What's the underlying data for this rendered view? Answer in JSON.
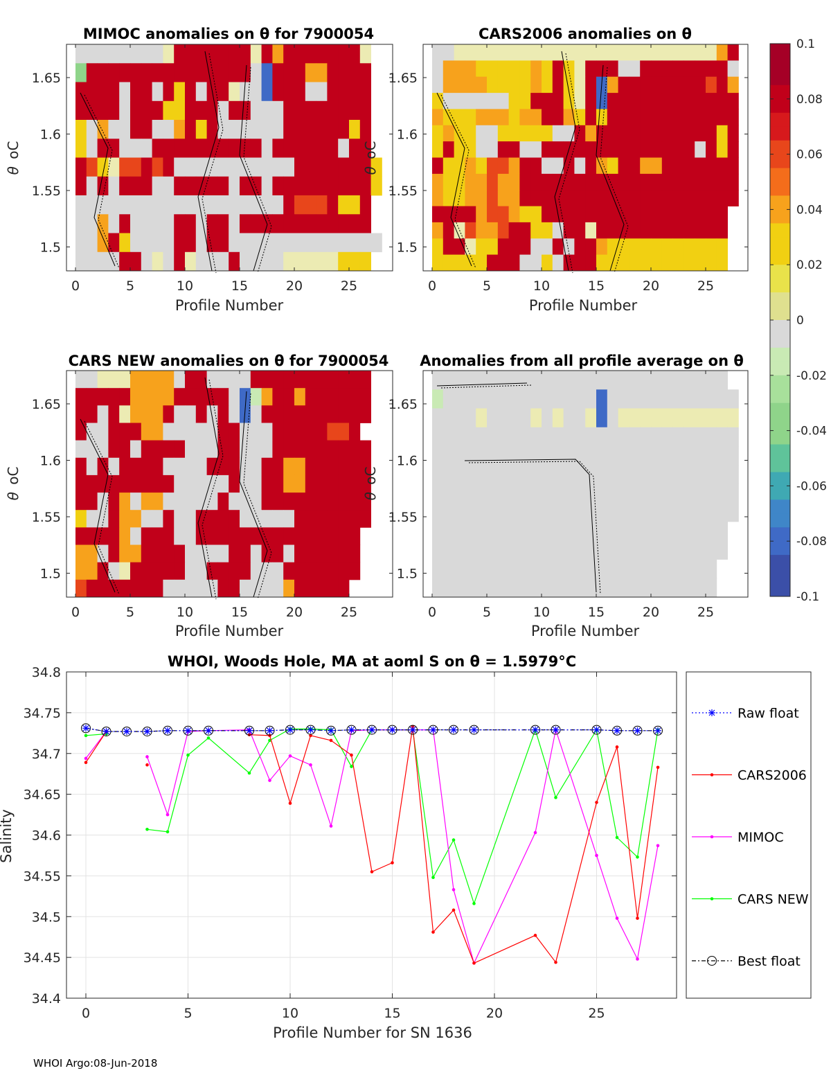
{
  "colors": {
    "red": "#c1001a",
    "orange_red": "#e8461b",
    "orange": "#f7a21c",
    "yellow": "#f1d012",
    "pale_yellow": "#ecebb3",
    "gray": "#d9d9d9",
    "green_pale": "#c9eab4",
    "green": "#8fd48a",
    "blue": "#3f6ac6",
    "cars2006_line": "#ff0000",
    "mimoc_line": "#ff00ff",
    "carsnew_line": "#00ff00",
    "raw_line": "#0000ff",
    "best_line": "#000000"
  },
  "colorbar": {
    "ticks": [
      "0.1",
      "0.08",
      "0.06",
      "0.04",
      "0.02",
      "0",
      "-0.02",
      "-0.04",
      "-0.06",
      "-0.08",
      "-0.1"
    ],
    "range": [
      -0.1,
      0.1
    ]
  },
  "anomaly_axes": {
    "x_ticks": [
      "0",
      "5",
      "10",
      "15",
      "20",
      "25"
    ],
    "y_ticks": [
      "1.65",
      "1.6",
      "1.55",
      "1.5"
    ],
    "y_label_main": "θ",
    "y_label_unit": "oC",
    "x_label_main": "Profile Number"
  },
  "panels": {
    "mimoc": {
      "title": "MIMOC anomalies on θ  for 7900054",
      "xlabel": "Profile Number"
    },
    "cars2006": {
      "title": "CARS2006 anomalies on θ",
      "xlabel": "Profile Number"
    },
    "carsnew": {
      "title": "CARS NEW anomalies on θ for 7900054",
      "xlabel": "Profile Number"
    },
    "average": {
      "title": "Anomalies from all profile average on θ",
      "xlabel": "Profile Number"
    }
  },
  "chart_data": {
    "type": "line",
    "title": "WHOI, Woods Hole, MA at aoml S on θ = 1.5979°C",
    "xlabel": "Profile Number for SN 1636",
    "ylabel": "Salinity",
    "xlim": [
      -0.5,
      29
    ],
    "ylim": [
      34.4,
      34.8
    ],
    "x_ticks": [
      "0",
      "5",
      "10",
      "15",
      "20",
      "25"
    ],
    "y_ticks": [
      "34.4",
      "34.45",
      "34.5",
      "34.55",
      "34.6",
      "34.65",
      "34.7",
      "34.75",
      "34.8"
    ],
    "series": [
      {
        "name": "Raw float",
        "x": [
          0,
          1,
          2,
          3,
          4,
          5,
          6,
          8,
          9,
          10,
          11,
          12,
          13,
          14,
          15,
          16,
          17,
          18,
          19,
          22,
          23,
          25,
          26,
          27,
          28
        ],
        "values": [
          34.731,
          34.727,
          34.727,
          34.727,
          34.728,
          34.728,
          34.728,
          34.728,
          34.728,
          34.729,
          34.729,
          34.728,
          34.729,
          34.729,
          34.729,
          34.729,
          34.729,
          34.729,
          34.729,
          34.729,
          34.729,
          34.729,
          34.728,
          34.728,
          34.728
        ]
      },
      {
        "name": "CARS2006",
        "x": [
          0,
          1,
          null,
          3,
          null,
          8,
          9,
          10,
          11,
          12,
          13,
          14,
          15,
          16,
          17,
          18,
          19,
          22,
          23,
          25,
          26,
          27,
          28
        ],
        "values": [
          34.689,
          34.727,
          null,
          34.686,
          null,
          34.723,
          34.722,
          34.639,
          34.722,
          34.716,
          34.698,
          34.555,
          34.566,
          34.733,
          34.481,
          34.508,
          34.443,
          34.477,
          34.444,
          34.64,
          34.708,
          34.498,
          34.683
        ]
      },
      {
        "name": "MIMOC",
        "x": [
          0,
          1,
          null,
          3,
          4,
          5,
          6,
          8,
          9,
          10,
          11,
          12,
          13,
          14,
          15,
          16,
          17,
          18,
          19,
          22,
          23,
          25,
          26,
          27,
          28
        ],
        "values": [
          34.694,
          34.727,
          null,
          34.696,
          34.625,
          34.727,
          34.728,
          34.729,
          34.667,
          34.697,
          34.686,
          34.611,
          34.728,
          34.729,
          34.729,
          34.729,
          34.729,
          34.533,
          34.443,
          34.603,
          34.729,
          34.575,
          34.498,
          34.448,
          34.587
        ]
      },
      {
        "name": "CARS NEW",
        "x": [
          0,
          1,
          null,
          3,
          4,
          5,
          6,
          8,
          9,
          10,
          11,
          12,
          13,
          14,
          15,
          16,
          17,
          18,
          19,
          22,
          23,
          25,
          26,
          27,
          28
        ],
        "values": [
          34.722,
          34.724,
          null,
          34.607,
          34.604,
          34.698,
          34.719,
          34.676,
          34.716,
          34.73,
          34.73,
          34.729,
          34.684,
          34.729,
          34.729,
          34.729,
          34.548,
          34.594,
          34.516,
          34.729,
          34.646,
          34.729,
          34.597,
          34.573,
          34.729
        ]
      },
      {
        "name": "Best float",
        "x": [
          0,
          1,
          2,
          3,
          4,
          5,
          6,
          8,
          9,
          10,
          11,
          12,
          13,
          14,
          15,
          16,
          17,
          18,
          19,
          22,
          23,
          25,
          26,
          27,
          28
        ],
        "values": [
          34.731,
          34.727,
          34.727,
          34.727,
          34.728,
          34.728,
          34.728,
          34.728,
          34.728,
          34.729,
          34.729,
          34.728,
          34.729,
          34.729,
          34.729,
          34.729,
          34.729,
          34.729,
          34.729,
          34.729,
          34.729,
          34.729,
          34.728,
          34.728,
          34.728
        ]
      }
    ]
  },
  "footer": "WHOI Argo:08-Jun-2018"
}
